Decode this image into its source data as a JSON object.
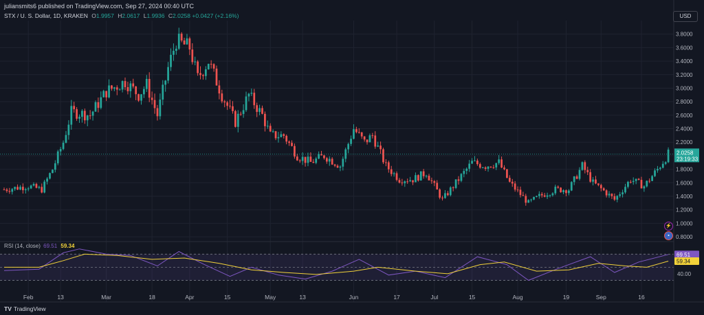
{
  "header": {
    "published_line": "juliansmits6 published on TradingView.com, Sep 27, 2024 00:40 UTC",
    "symbol": "STX / U. S. Dollar, 1D, KRAKEN",
    "open_label": "O",
    "open": "1.9957",
    "high_label": "H",
    "high": "2.0617",
    "low_label": "L",
    "low": "1.9936",
    "close_label": "C",
    "close": "2.0258",
    "change": "+0.0427 (+2.16%)",
    "currency_button": "USD"
  },
  "rsi_legend": {
    "label": "RSI (14, close)",
    "rsi_value": "69.51",
    "ma_value": "59.34"
  },
  "footer": {
    "brand": "TradingView",
    "logo": "TV"
  },
  "icons": [
    "lightning-icon",
    "flag-icon"
  ],
  "colors": {
    "up": "#26a69a",
    "down": "#ef5350",
    "rsi": "#7e57c2",
    "rsi_ma": "#f2d23a",
    "background": "#131722",
    "grid": "#1f2330",
    "text": "#b2b5be"
  },
  "chart_data": [
    {
      "type": "candlestick",
      "title": "STX / U. S. Dollar, 1D, KRAKEN",
      "y_ticks": [
        "0.8000",
        "1.0000",
        "1.2000",
        "1.4000",
        "1.6000",
        "1.8000",
        "2.0000",
        "2.2000",
        "2.4000",
        "2.6000",
        "2.8000",
        "3.0000",
        "3.2000",
        "3.4000",
        "3.6000",
        "3.8000"
      ],
      "x_ticks": [
        "Feb",
        "13",
        "Mar",
        "18",
        "Apr",
        "15",
        "May",
        "13",
        "Jun",
        "17",
        "Jul",
        "15",
        "Aug",
        "19",
        "Sep",
        "16"
      ],
      "ylim": [
        0.75,
        4.0
      ],
      "last_price": "2.0258",
      "countdown": "23:19:33",
      "close_series": [
        {
          "date": "2024-01-23",
          "close": 1.5
        },
        {
          "date": "2024-02-01",
          "close": 1.55
        },
        {
          "date": "2024-02-06",
          "close": 1.5
        },
        {
          "date": "2024-02-10",
          "close": 1.8
        },
        {
          "date": "2024-02-14",
          "close": 2.2
        },
        {
          "date": "2024-02-17",
          "close": 2.65
        },
        {
          "date": "2024-02-24",
          "close": 2.6
        },
        {
          "date": "2024-03-01",
          "close": 2.95
        },
        {
          "date": "2024-03-08",
          "close": 3.1
        },
        {
          "date": "2024-03-13",
          "close": 2.9
        },
        {
          "date": "2024-03-16",
          "close": 3.05
        },
        {
          "date": "2024-03-20",
          "close": 2.6
        },
        {
          "date": "2024-03-24",
          "close": 3.3
        },
        {
          "date": "2024-03-27",
          "close": 3.7
        },
        {
          "date": "2024-04-01",
          "close": 3.6
        },
        {
          "date": "2024-04-04",
          "close": 3.15
        },
        {
          "date": "2024-04-08",
          "close": 3.4
        },
        {
          "date": "2024-04-13",
          "close": 2.9
        },
        {
          "date": "2024-04-18",
          "close": 2.5
        },
        {
          "date": "2024-04-23",
          "close": 2.9
        },
        {
          "date": "2024-04-28",
          "close": 2.6
        },
        {
          "date": "2024-05-01",
          "close": 2.3
        },
        {
          "date": "2024-05-06",
          "close": 2.3
        },
        {
          "date": "2024-05-11",
          "close": 2.0
        },
        {
          "date": "2024-05-16",
          "close": 1.9
        },
        {
          "date": "2024-05-21",
          "close": 2.0
        },
        {
          "date": "2024-05-27",
          "close": 1.85
        },
        {
          "date": "2024-06-01",
          "close": 2.4
        },
        {
          "date": "2024-06-05",
          "close": 2.2
        },
        {
          "date": "2024-06-08",
          "close": 2.3
        },
        {
          "date": "2024-06-13",
          "close": 1.85
        },
        {
          "date": "2024-06-18",
          "close": 1.65
        },
        {
          "date": "2024-06-23",
          "close": 1.65
        },
        {
          "date": "2024-06-28",
          "close": 1.75
        },
        {
          "date": "2024-07-04",
          "close": 1.35
        },
        {
          "date": "2024-07-10",
          "close": 1.65
        },
        {
          "date": "2024-07-15",
          "close": 1.9
        },
        {
          "date": "2024-07-20",
          "close": 1.85
        },
        {
          "date": "2024-07-25",
          "close": 1.9
        },
        {
          "date": "2024-07-29",
          "close": 1.6
        },
        {
          "date": "2024-08-05",
          "close": 1.3
        },
        {
          "date": "2024-08-09",
          "close": 1.4
        },
        {
          "date": "2024-08-15",
          "close": 1.5
        },
        {
          "date": "2024-08-20",
          "close": 1.5
        },
        {
          "date": "2024-08-25",
          "close": 1.85
        },
        {
          "date": "2024-08-29",
          "close": 1.6
        },
        {
          "date": "2024-09-03",
          "close": 1.45
        },
        {
          "date": "2024-09-06",
          "close": 1.35
        },
        {
          "date": "2024-09-12",
          "close": 1.65
        },
        {
          "date": "2024-09-17",
          "close": 1.55
        },
        {
          "date": "2024-09-22",
          "close": 1.8
        },
        {
          "date": "2024-09-26",
          "close": 2.0258
        }
      ]
    },
    {
      "type": "line",
      "title": "RSI (14, close)",
      "y_ticks": [
        "40.00"
      ],
      "bands": [
        30,
        70
      ],
      "ylim": [
        20,
        85
      ],
      "series": [
        {
          "name": "RSI (14, close)",
          "last": "69.51",
          "points": [
            {
              "date": "2024-01-23",
              "value": 45
            },
            {
              "date": "2024-02-05",
              "value": 47
            },
            {
              "date": "2024-02-14",
              "value": 72
            },
            {
              "date": "2024-02-20",
              "value": 78
            },
            {
              "date": "2024-03-01",
              "value": 70
            },
            {
              "date": "2024-03-10",
              "value": 68
            },
            {
              "date": "2024-03-20",
              "value": 52
            },
            {
              "date": "2024-03-28",
              "value": 74
            },
            {
              "date": "2024-04-06",
              "value": 55
            },
            {
              "date": "2024-04-16",
              "value": 36
            },
            {
              "date": "2024-04-24",
              "value": 50
            },
            {
              "date": "2024-05-04",
              "value": 38
            },
            {
              "date": "2024-05-14",
              "value": 32
            },
            {
              "date": "2024-05-24",
              "value": 44
            },
            {
              "date": "2024-06-03",
              "value": 62
            },
            {
              "date": "2024-06-14",
              "value": 38
            },
            {
              "date": "2024-06-24",
              "value": 44
            },
            {
              "date": "2024-07-05",
              "value": 34
            },
            {
              "date": "2024-07-17",
              "value": 66
            },
            {
              "date": "2024-07-28",
              "value": 54
            },
            {
              "date": "2024-08-05",
              "value": 30
            },
            {
              "date": "2024-08-16",
              "value": 48
            },
            {
              "date": "2024-08-28",
              "value": 66
            },
            {
              "date": "2024-09-06",
              "value": 42
            },
            {
              "date": "2024-09-15",
              "value": 58
            },
            {
              "date": "2024-09-26",
              "value": 69.51
            }
          ]
        },
        {
          "name": "MA",
          "last": "59.34",
          "points": [
            {
              "date": "2024-01-23",
              "value": 50
            },
            {
              "date": "2024-02-05",
              "value": 50
            },
            {
              "date": "2024-02-14",
              "value": 60
            },
            {
              "date": "2024-02-22",
              "value": 70
            },
            {
              "date": "2024-03-05",
              "value": 68
            },
            {
              "date": "2024-03-18",
              "value": 62
            },
            {
              "date": "2024-03-30",
              "value": 64
            },
            {
              "date": "2024-04-12",
              "value": 56
            },
            {
              "date": "2024-04-24",
              "value": 46
            },
            {
              "date": "2024-05-06",
              "value": 42
            },
            {
              "date": "2024-05-18",
              "value": 39
            },
            {
              "date": "2024-06-01",
              "value": 44
            },
            {
              "date": "2024-06-10",
              "value": 50
            },
            {
              "date": "2024-06-24",
              "value": 44
            },
            {
              "date": "2024-07-06",
              "value": 40
            },
            {
              "date": "2024-07-18",
              "value": 54
            },
            {
              "date": "2024-07-27",
              "value": 58
            },
            {
              "date": "2024-08-08",
              "value": 44
            },
            {
              "date": "2024-08-20",
              "value": 46
            },
            {
              "date": "2024-08-31",
              "value": 56
            },
            {
              "date": "2024-09-10",
              "value": 52
            },
            {
              "date": "2024-09-18",
              "value": 50
            },
            {
              "date": "2024-09-26",
              "value": 59.34
            }
          ]
        }
      ]
    }
  ]
}
